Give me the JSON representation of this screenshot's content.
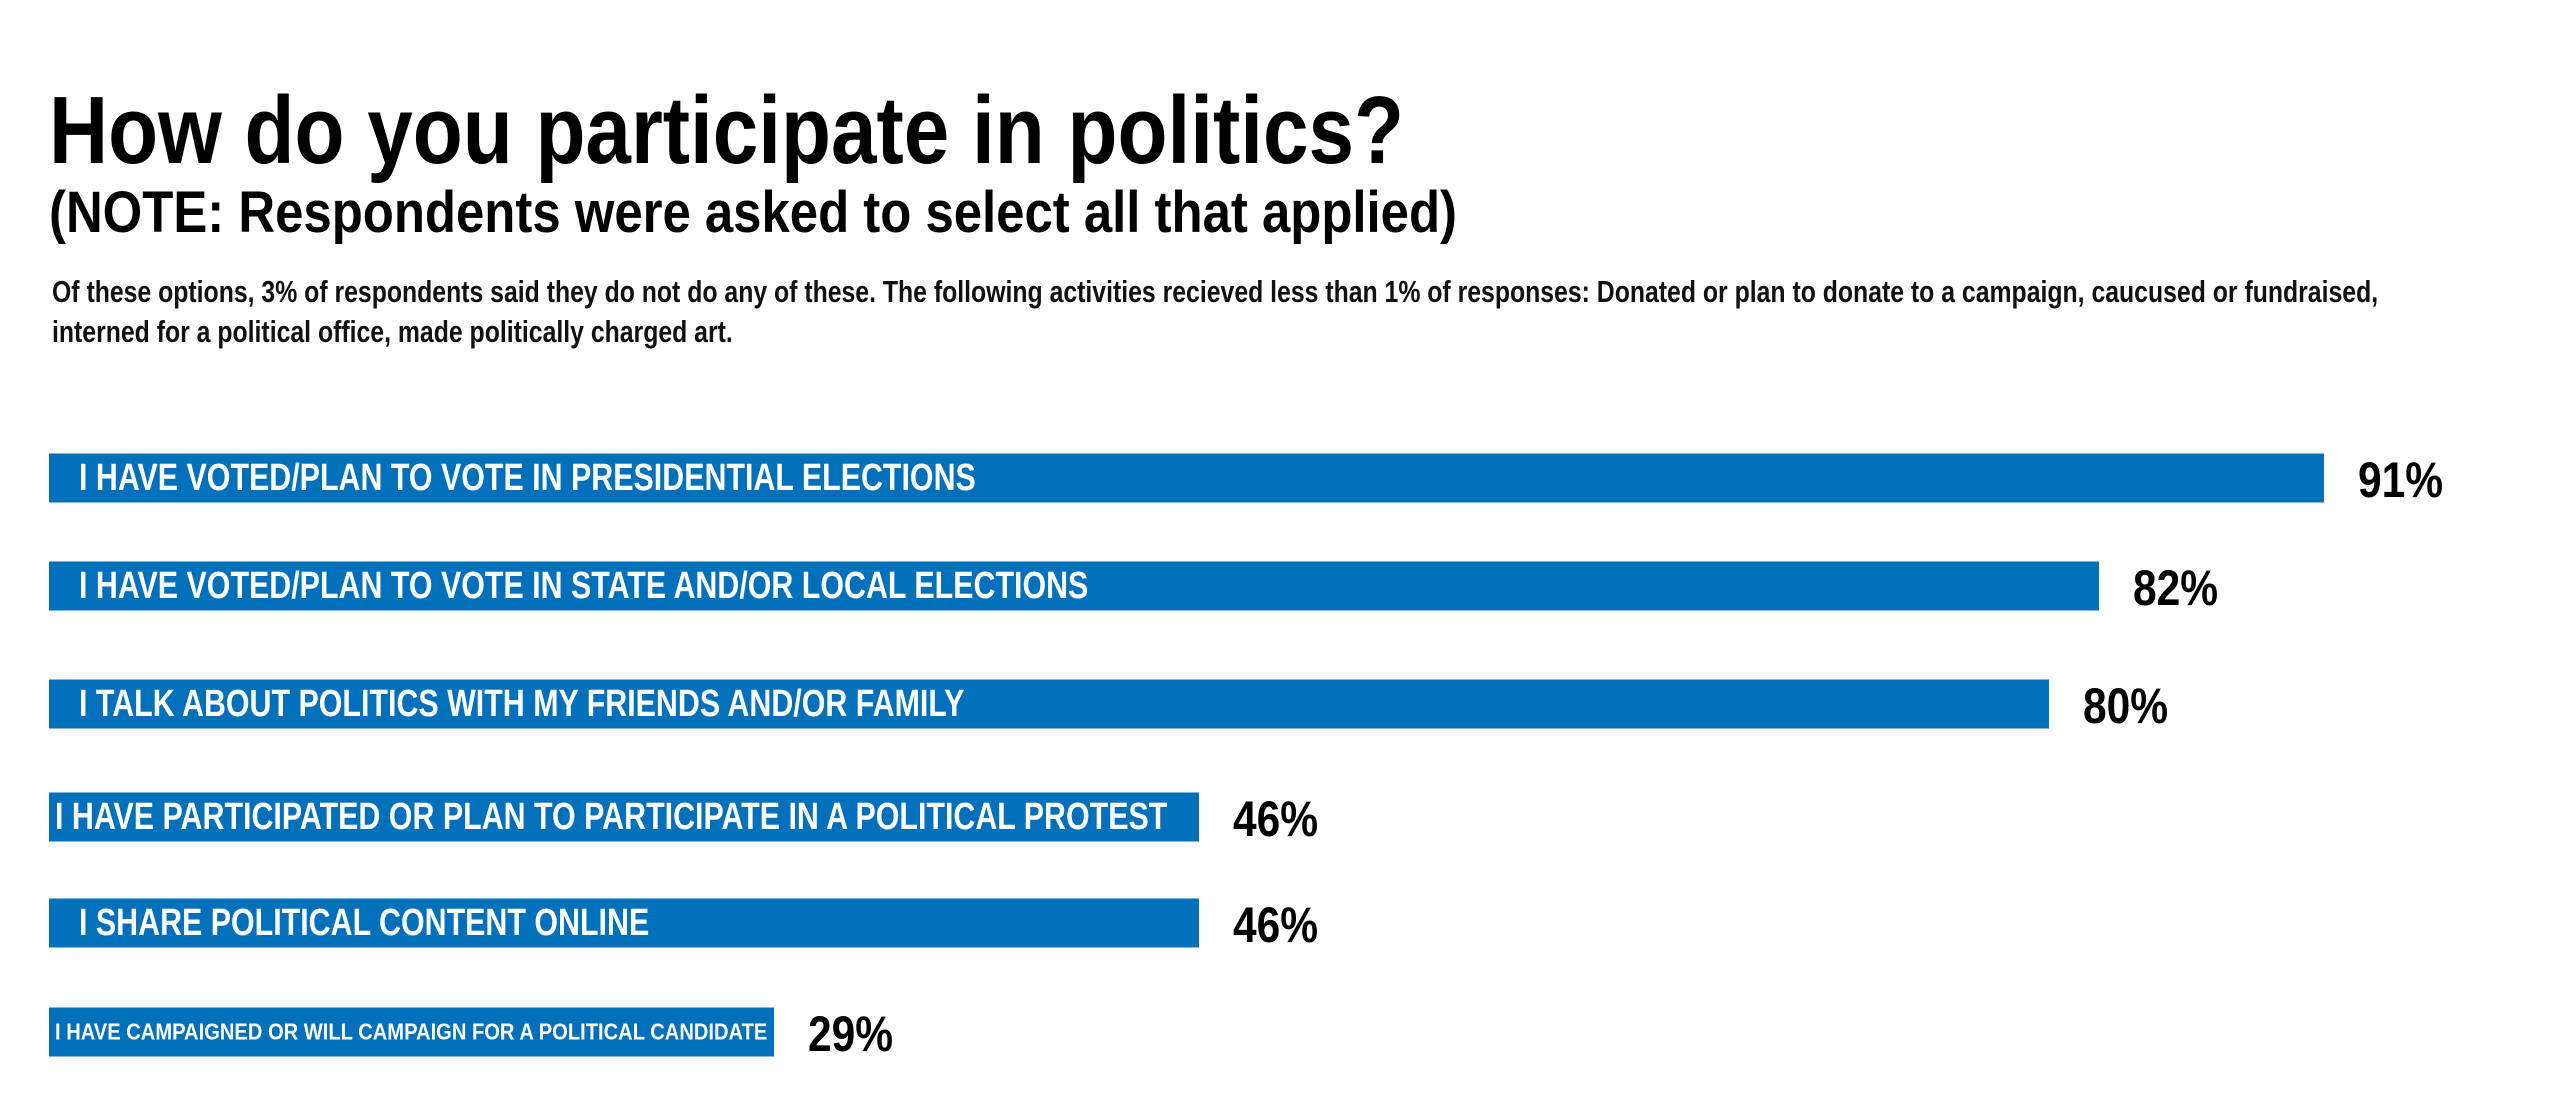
{
  "chart_data": {
    "type": "hbar",
    "title": "How do you participate in politics?",
    "subtitle": "(NOTE: Respondents were asked to select all that applied)",
    "note": "Of these options, 3% of respondents said they do not do any of these. The following activities recieved less than 1% of responses: Donated or plan to donate to a campaign, caucused or fundraised, interned for a political office, made politically charged art.",
    "categories": [
      "I HAVE VOTED/PLAN TO VOTE IN PRESIDENTIAL ELECTIONS",
      "I HAVE VOTED/PLAN TO VOTE IN STATE AND/OR LOCAL ELECTIONS",
      "I TALK ABOUT POLITICS WITH MY FRIENDS AND/OR FAMILY",
      "I HAVE PARTICIPATED OR PLAN TO PARTICIPATE IN A POLITICAL PROTEST",
      "I SHARE POLITICAL CONTENT ONLINE",
      "I HAVE CAMPAIGNED OR WILL CAMPAIGN FOR A POLITICAL CANDIDATE"
    ],
    "values": [
      91,
      82,
      80,
      46,
      46,
      29
    ],
    "value_labels": [
      "91%",
      "82%",
      "80%",
      "46%",
      "46%",
      "29%"
    ],
    "color": "#0070ba"
  }
}
